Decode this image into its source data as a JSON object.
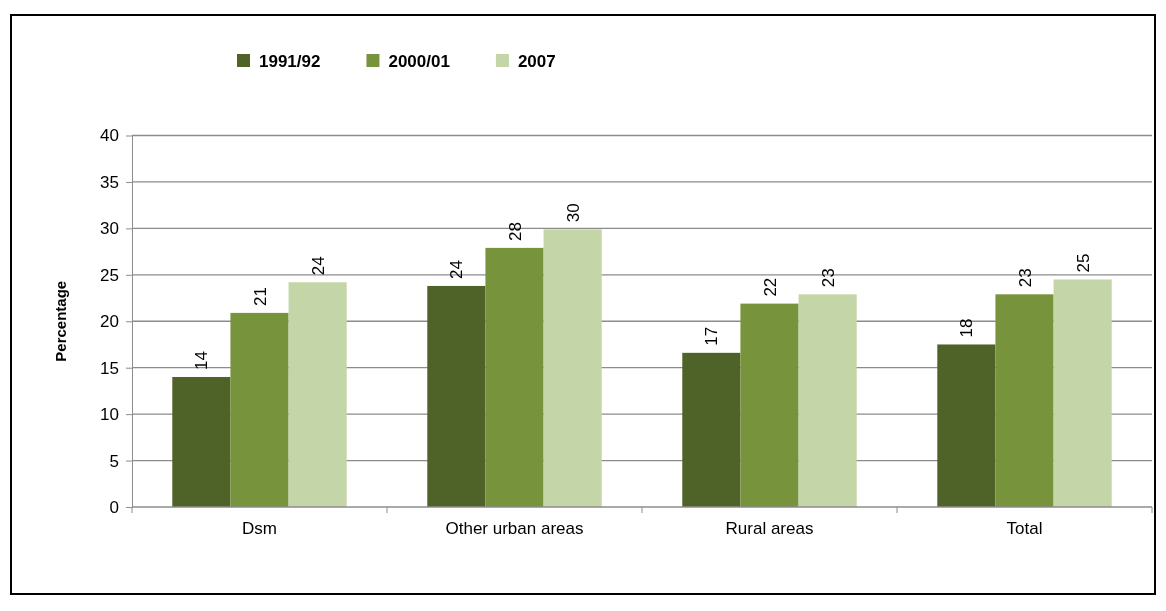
{
  "chart_data": {
    "type": "bar",
    "ylabel": "Percentage",
    "categories": [
      "Dsm",
      "Other urban areas",
      "Rural areas",
      "Total"
    ],
    "series": [
      {
        "name": "1991/92",
        "color": "#4f6228",
        "values": [
          14.0,
          23.8,
          16.6,
          17.5
        ],
        "value_labels": [
          "14",
          "24",
          "17",
          "18"
        ]
      },
      {
        "name": "2000/01",
        "color": "#77933c",
        "values": [
          20.9,
          27.9,
          21.9,
          22.9
        ],
        "value_labels": [
          "21",
          "28",
          "22",
          "23"
        ]
      },
      {
        "name": "2007",
        "color": "#c4d6a8",
        "values": [
          24.2,
          29.9,
          22.9,
          24.5
        ],
        "value_labels": [
          "24",
          "30",
          "23",
          "25"
        ]
      }
    ],
    "ylim": [
      0,
      40
    ],
    "yticks": [
      0,
      5,
      10,
      15,
      20,
      25,
      30,
      35,
      40
    ],
    "grid": "y",
    "legend": "top"
  }
}
